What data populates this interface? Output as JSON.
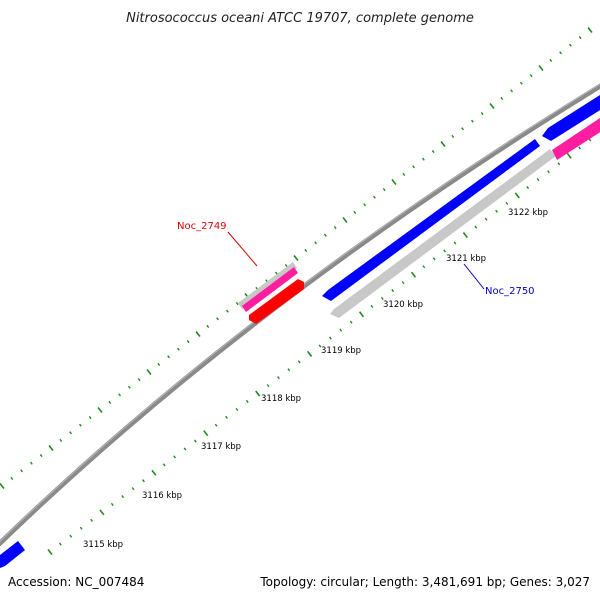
{
  "title": "Nitrosococcus oceani ATCC 19707, complete genome",
  "footer": {
    "accession": "Accession: NC_007484",
    "summary": "Topology: circular; Length: 3,481,691 bp; Genes: 3,027"
  },
  "colors": {
    "backbone": "#8a8a8a",
    "tick": "#1e8c1e",
    "gene_blue": "#0000ff",
    "gene_gray": "#c8c8c8",
    "gene_pink": "#ff1ea0",
    "gene_red": "#ff0000",
    "label_red": "#e00000",
    "label_blue": "#0000cc"
  },
  "ticks": [
    {
      "label": "3115 kbp"
    },
    {
      "label": "3116 kbp"
    },
    {
      "label": "3117 kbp"
    },
    {
      "label": "3118 kbp"
    },
    {
      "label": "3119 kbp"
    },
    {
      "label": "3120 kbp"
    },
    {
      "label": "3121 kbp"
    },
    {
      "label": "3122 kbp"
    }
  ],
  "callouts": [
    {
      "name": "Noc_2749",
      "color": "#e00000"
    },
    {
      "name": "Noc_2750",
      "color": "#0000cc"
    }
  ]
}
